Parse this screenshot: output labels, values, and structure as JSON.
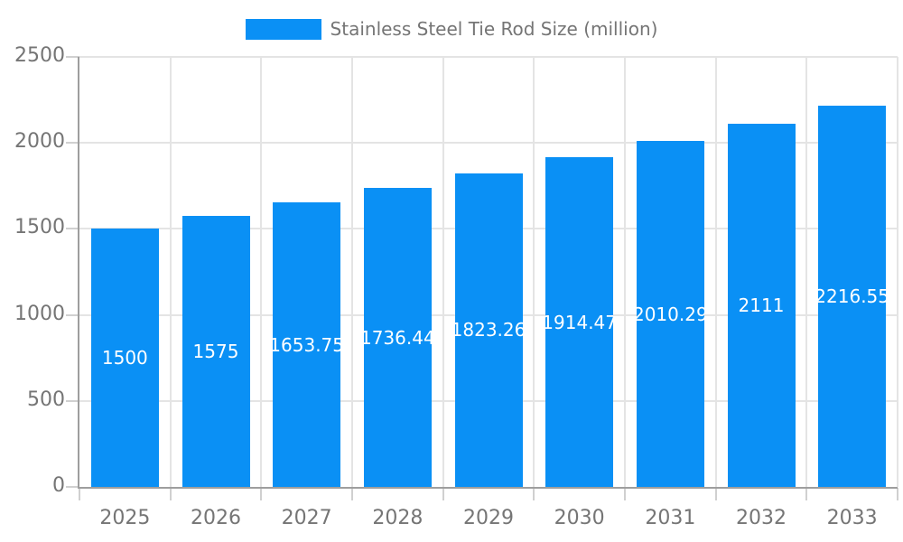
{
  "chart_data": {
    "type": "bar",
    "title": "Stainless Steel Tie Rod Size (million)",
    "legend_position": "top",
    "categories": [
      "2025",
      "2026",
      "2027",
      "2028",
      "2029",
      "2030",
      "2031",
      "2032",
      "2033"
    ],
    "series": [
      {
        "name": "Stainless Steel Tie Rod Size (million)",
        "values": [
          1500,
          1575,
          1653.75,
          1736.44,
          1823.26,
          1914.47,
          2010.29,
          2111,
          2216.55
        ]
      }
    ],
    "value_labels": [
      "1500",
      "1575",
      "1653.75",
      "1736.44",
      "1823.26",
      "1914.47",
      "2010.29",
      "2111",
      "2216.55"
    ],
    "xlabel": "",
    "ylabel": "",
    "ylim": [
      0,
      2500
    ],
    "yticks": [
      0,
      500,
      1000,
      1500,
      2000,
      2500
    ],
    "ytick_labels": [
      "0",
      "500",
      "1000",
      "1500",
      "2000",
      "2500"
    ],
    "grid": true,
    "colors": {
      "bar": "#0a90f5",
      "grid": "#e4e4e4",
      "axis_line": "#9e9e9e",
      "tick": "#d0d0d0",
      "axis_text": "#757575",
      "value_label_text": "#ffffff",
      "background": "#ffffff"
    }
  }
}
